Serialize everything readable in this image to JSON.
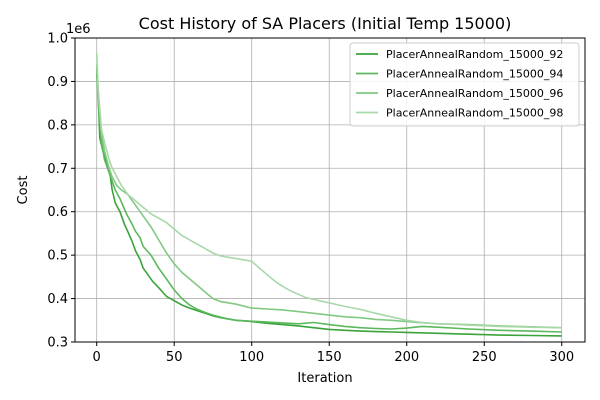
{
  "chart_data": {
    "type": "line",
    "title": "Cost History of SA Placers (Initial Temp 15000)",
    "xlabel": "Iteration",
    "ylabel": "Cost",
    "y_scale_label": "1e6",
    "xlim": [
      -14,
      315
    ],
    "ylim": [
      300000,
      1000000
    ],
    "x_ticks": [
      0,
      50,
      100,
      150,
      200,
      250,
      300
    ],
    "y_ticks": [
      300000,
      400000,
      500000,
      600000,
      700000,
      800000,
      900000,
      1000000
    ],
    "y_tick_labels": [
      "0.3",
      "0.4",
      "0.5",
      "0.6",
      "0.7",
      "0.8",
      "0.9",
      "1.0"
    ],
    "grid": true,
    "legend_position": "top-right",
    "series": [
      {
        "name": "PlacerAnnealRandom_15000_92",
        "color": "#3aa33a",
        "points": [
          [
            0,
            920000
          ],
          [
            1,
            860000
          ],
          [
            2,
            770000
          ],
          [
            4,
            740000
          ],
          [
            6,
            720000
          ],
          [
            8,
            700000
          ],
          [
            10,
            650000
          ],
          [
            12,
            620000
          ],
          [
            15,
            600000
          ],
          [
            18,
            570000
          ],
          [
            20,
            555000
          ],
          [
            23,
            530000
          ],
          [
            25,
            510000
          ],
          [
            28,
            490000
          ],
          [
            30,
            470000
          ],
          [
            33,
            455000
          ],
          [
            36,
            440000
          ],
          [
            40,
            425000
          ],
          [
            45,
            405000
          ],
          [
            50,
            395000
          ],
          [
            55,
            385000
          ],
          [
            60,
            378000
          ],
          [
            65,
            372000
          ],
          [
            70,
            366000
          ],
          [
            75,
            360000
          ],
          [
            80,
            356000
          ],
          [
            90,
            350000
          ],
          [
            100,
            347000
          ],
          [
            110,
            343000
          ],
          [
            120,
            340000
          ],
          [
            130,
            337000
          ],
          [
            140,
            333000
          ],
          [
            150,
            329000
          ],
          [
            160,
            327000
          ],
          [
            170,
            325000
          ],
          [
            180,
            324000
          ],
          [
            190,
            323000
          ],
          [
            200,
            322000
          ],
          [
            220,
            320000
          ],
          [
            240,
            318000
          ],
          [
            260,
            316000
          ],
          [
            280,
            315000
          ],
          [
            300,
            314000
          ]
        ]
      },
      {
        "name": "PlacerAnnealRandom_15000_94",
        "color": "#5cb85c",
        "points": [
          [
            0,
            930000
          ],
          [
            1,
            850000
          ],
          [
            3,
            760000
          ],
          [
            5,
            720000
          ],
          [
            8,
            690000
          ],
          [
            10,
            670000
          ],
          [
            12,
            650000
          ],
          [
            15,
            630000
          ],
          [
            18,
            605000
          ],
          [
            20,
            590000
          ],
          [
            23,
            570000
          ],
          [
            25,
            555000
          ],
          [
            28,
            540000
          ],
          [
            30,
            520000
          ],
          [
            35,
            500000
          ],
          [
            40,
            470000
          ],
          [
            45,
            445000
          ],
          [
            50,
            420000
          ],
          [
            55,
            400000
          ],
          [
            60,
            385000
          ],
          [
            65,
            375000
          ],
          [
            70,
            368000
          ],
          [
            75,
            362000
          ],
          [
            80,
            357000
          ],
          [
            85,
            353000
          ],
          [
            90,
            350000
          ],
          [
            100,
            348000
          ],
          [
            110,
            346000
          ],
          [
            120,
            344000
          ],
          [
            130,
            342000
          ],
          [
            140,
            345000
          ],
          [
            150,
            340000
          ],
          [
            160,
            336000
          ],
          [
            170,
            333000
          ],
          [
            180,
            331000
          ],
          [
            190,
            330000
          ],
          [
            200,
            332000
          ],
          [
            210,
            336000
          ],
          [
            220,
            334000
          ],
          [
            240,
            330000
          ],
          [
            260,
            327000
          ],
          [
            280,
            325000
          ],
          [
            300,
            323000
          ]
        ]
      },
      {
        "name": "PlacerAnnealRandom_15000_96",
        "color": "#82c882",
        "points": [
          [
            0,
            940000
          ],
          [
            1,
            870000
          ],
          [
            3,
            780000
          ],
          [
            5,
            740000
          ],
          [
            8,
            700000
          ],
          [
            10,
            680000
          ],
          [
            13,
            660000
          ],
          [
            16,
            650000
          ],
          [
            20,
            640000
          ],
          [
            25,
            615000
          ],
          [
            30,
            590000
          ],
          [
            35,
            565000
          ],
          [
            40,
            535000
          ],
          [
            45,
            505000
          ],
          [
            50,
            480000
          ],
          [
            55,
            460000
          ],
          [
            60,
            445000
          ],
          [
            65,
            430000
          ],
          [
            70,
            415000
          ],
          [
            75,
            400000
          ],
          [
            80,
            393000
          ],
          [
            90,
            387000
          ],
          [
            100,
            378000
          ],
          [
            110,
            376000
          ],
          [
            120,
            374000
          ],
          [
            130,
            370000
          ],
          [
            140,
            366000
          ],
          [
            150,
            362000
          ],
          [
            160,
            358000
          ],
          [
            170,
            356000
          ],
          [
            180,
            352000
          ],
          [
            190,
            350000
          ],
          [
            200,
            347000
          ],
          [
            220,
            342000
          ],
          [
            240,
            340000
          ],
          [
            260,
            337000
          ],
          [
            280,
            335000
          ],
          [
            300,
            333000
          ]
        ]
      },
      {
        "name": "PlacerAnnealRandom_15000_98",
        "color": "#a8d8a8",
        "points": [
          [
            0,
            965000
          ],
          [
            1,
            880000
          ],
          [
            3,
            790000
          ],
          [
            5,
            760000
          ],
          [
            8,
            720000
          ],
          [
            10,
            700000
          ],
          [
            13,
            680000
          ],
          [
            16,
            660000
          ],
          [
            20,
            640000
          ],
          [
            25,
            625000
          ],
          [
            30,
            610000
          ],
          [
            35,
            595000
          ],
          [
            40,
            585000
          ],
          [
            45,
            575000
          ],
          [
            50,
            560000
          ],
          [
            55,
            545000
          ],
          [
            60,
            535000
          ],
          [
            65,
            525000
          ],
          [
            70,
            515000
          ],
          [
            75,
            505000
          ],
          [
            80,
            498000
          ],
          [
            85,
            495000
          ],
          [
            90,
            492000
          ],
          [
            95,
            489000
          ],
          [
            100,
            486000
          ],
          [
            105,
            470000
          ],
          [
            110,
            455000
          ],
          [
            115,
            440000
          ],
          [
            120,
            428000
          ],
          [
            125,
            418000
          ],
          [
            130,
            410000
          ],
          [
            135,
            402000
          ],
          [
            140,
            398000
          ],
          [
            145,
            394000
          ],
          [
            150,
            390000
          ],
          [
            160,
            382000
          ],
          [
            170,
            375000
          ],
          [
            180,
            366000
          ],
          [
            190,
            358000
          ],
          [
            200,
            350000
          ],
          [
            210,
            345000
          ],
          [
            220,
            342000
          ],
          [
            240,
            339000
          ],
          [
            260,
            336000
          ],
          [
            280,
            334000
          ],
          [
            300,
            333000
          ]
        ]
      }
    ]
  }
}
